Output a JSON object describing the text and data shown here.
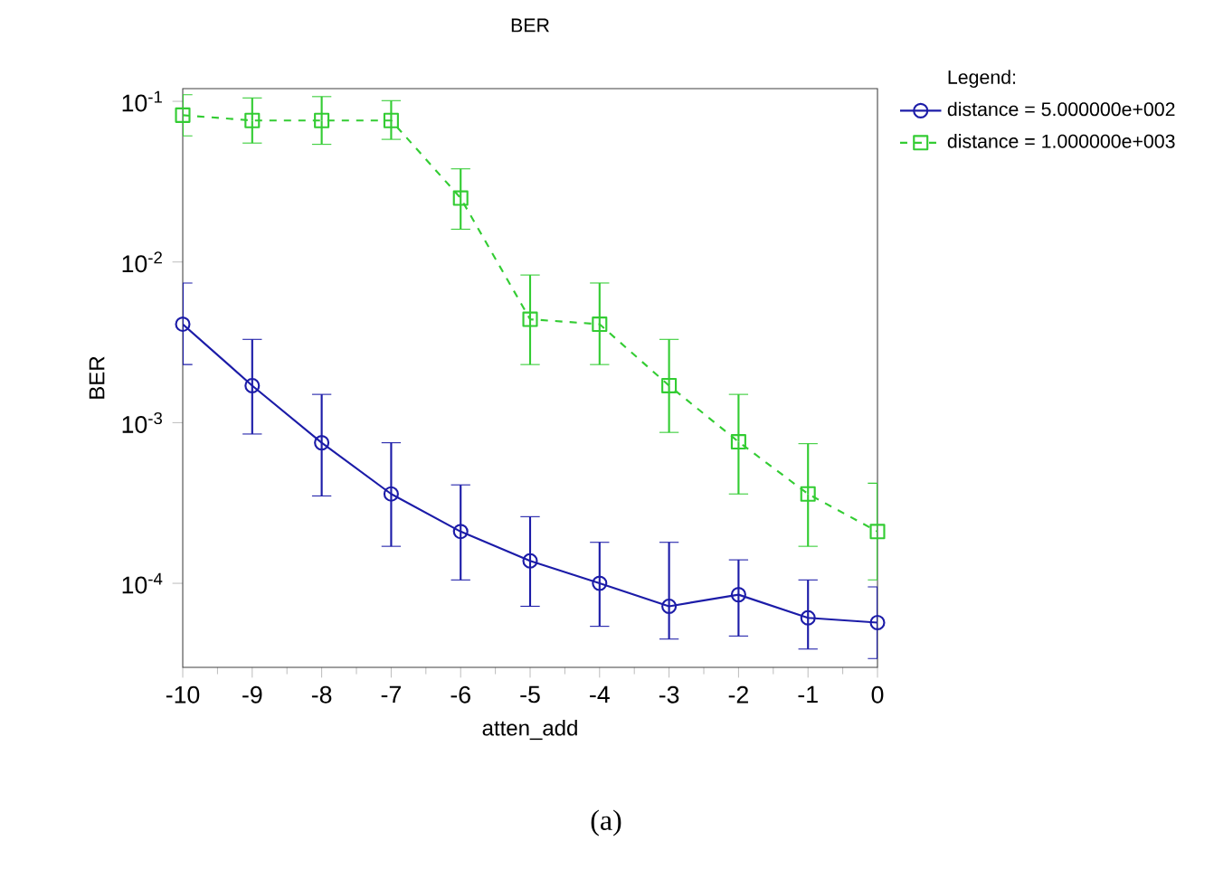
{
  "chart_data": {
    "type": "line",
    "title": "BER",
    "xlabel": "atten_add",
    "ylabel": "BER",
    "legend_title": "Legend:",
    "log": "y",
    "legend": "right",
    "grid": false,
    "x": [
      -10,
      -9,
      -8,
      -7,
      -6,
      -5,
      -4,
      -3,
      -2,
      -1,
      0
    ],
    "xlim": [
      -10,
      0
    ],
    "xticks": [
      -10,
      -9,
      -8,
      -7,
      -6,
      -5,
      -4,
      -3,
      -2,
      -1,
      0
    ],
    "ylim": [
      3e-05,
      0.12
    ],
    "yticks": [
      {
        "value": 0.1,
        "label": "10$^{-1}$"
      },
      {
        "value": 0.01,
        "label": "10$^{-2}$"
      },
      {
        "value": 0.001,
        "label": "10$^{-3}$"
      },
      {
        "value": 0.0001,
        "label": "10$^{-4}$"
      }
    ],
    "series": [
      {
        "name": "distance = 5.000000e+002",
        "color": "#1c1ca8",
        "marker": "circle",
        "line_style": "solid",
        "values": [
          0.0041,
          0.0017,
          0.00075,
          0.00036,
          0.00021,
          0.000138,
          0.0001,
          7.2e-05,
          8.5e-05,
          6.1e-05,
          5.7e-05
        ],
        "errors": [
          [
            0.0023,
            0.0074
          ],
          [
            0.00085,
            0.0033
          ],
          [
            0.00035,
            0.0015
          ],
          [
            0.00017,
            0.00075
          ],
          [
            0.000105,
            0.00041
          ],
          [
            7.2e-05,
            0.00026
          ],
          [
            5.4e-05,
            0.00018
          ],
          [
            4.5e-05,
            0.00018
          ],
          [
            4.7e-05,
            0.00014
          ],
          [
            3.9e-05,
            0.000105
          ],
          [
            3.4e-05,
            9.5e-05
          ]
        ]
      },
      {
        "name": "distance = 1.000000e+003",
        "color": "#33cc33",
        "marker": "square",
        "line_style": "dashed",
        "values": [
          0.082,
          0.076,
          0.076,
          0.076,
          0.025,
          0.0044,
          0.0041,
          0.0017,
          0.00076,
          0.00036,
          0.00021
        ],
        "errors": [
          [
            0.061,
            0.11
          ],
          [
            0.055,
            0.105
          ],
          [
            0.054,
            0.107
          ],
          [
            0.058,
            0.101
          ],
          [
            0.016,
            0.038
          ],
          [
            0.0023,
            0.0083
          ],
          [
            0.0023,
            0.0074
          ],
          [
            0.00087,
            0.0033
          ],
          [
            0.00036,
            0.0015
          ],
          [
            0.00017,
            0.00074
          ],
          [
            0.000105,
            0.00042
          ]
        ]
      }
    ],
    "annotations": [
      "(a)"
    ]
  }
}
